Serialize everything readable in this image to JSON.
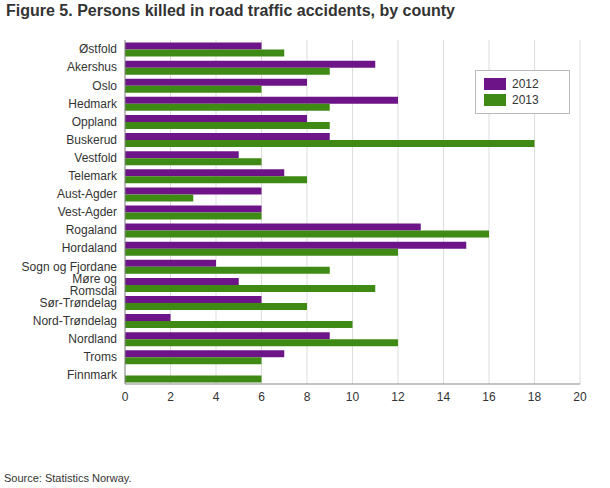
{
  "chart_data": {
    "type": "bar",
    "title": "Figure 5. Persons killed in road traffic accidents, by county",
    "source": "Source: Statistics Norway.",
    "orientation": "horizontal",
    "categories": [
      "Østfold",
      "Akershus",
      "Oslo",
      "Hedmark",
      "Oppland",
      "Buskerud",
      "Vestfold",
      "Telemark",
      "Aust-Agder",
      "Vest-Agder",
      "Rogaland",
      "Hordaland",
      "Sogn og Fjordane",
      "Møre og Romsdal",
      "Sør-Trøndelag",
      "Nord-Trøndelag",
      "Nordland",
      "Troms",
      "Finnmark"
    ],
    "series": [
      {
        "name": "2012",
        "color": "#6e1489",
        "values": [
          6,
          11,
          8,
          12,
          8,
          9,
          5,
          7,
          6,
          6,
          13,
          15,
          4,
          5,
          6,
          2,
          9,
          7,
          0
        ]
      },
      {
        "name": "2013",
        "color": "#3f8a14",
        "values": [
          7,
          9,
          6,
          9,
          9,
          18,
          6,
          8,
          3,
          6,
          16,
          12,
          9,
          11,
          8,
          10,
          12,
          6,
          6
        ]
      }
    ],
    "xlim": [
      0,
      20
    ],
    "xticks": [
      0,
      2,
      4,
      6,
      8,
      10,
      12,
      14,
      16,
      18,
      20
    ],
    "grid": true,
    "legend": "upper right"
  }
}
